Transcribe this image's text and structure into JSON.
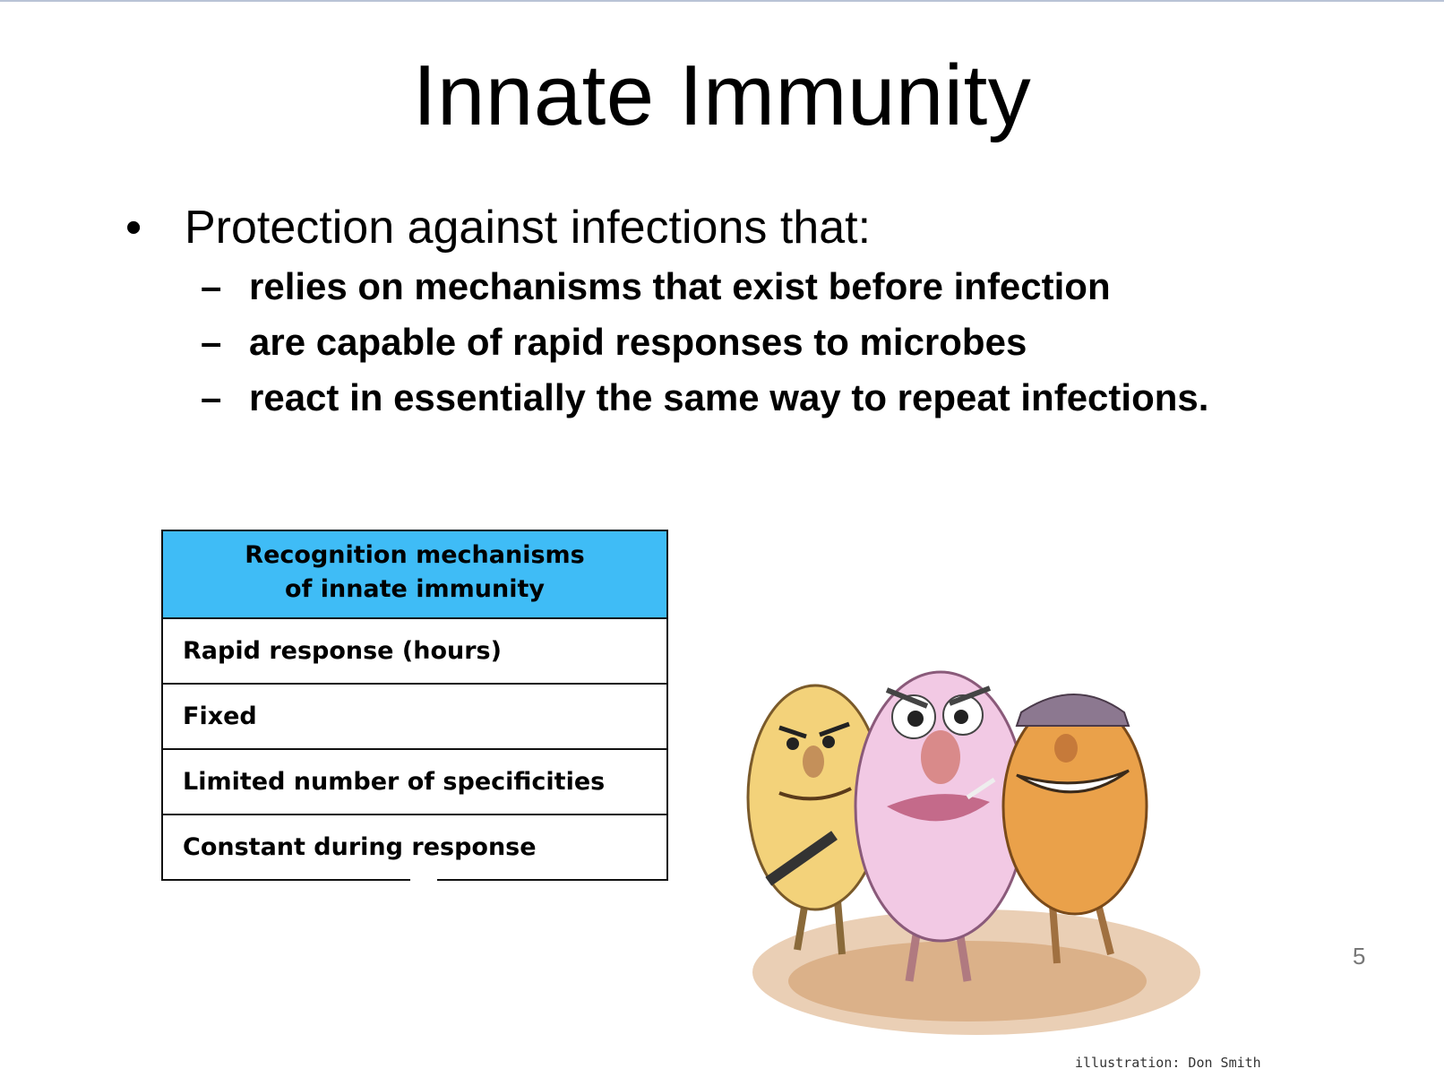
{
  "slide": {
    "title": "Innate Immunity",
    "bullet_marker": "•",
    "bullet": "Protection against infections that:",
    "sub_marker": "–",
    "sub_bullets": [
      "relies on mechanisms that exist before infection",
      "are capable of rapid responses to microbes",
      "react in essentially the same way to repeat infections."
    ],
    "page_number": "5"
  },
  "table": {
    "header_line1": "Recognition mechanisms",
    "header_line2": "of innate immunity",
    "header_color": "#3fbcf6",
    "rows": [
      "Rapid response (hours)",
      "Fixed",
      "Limited number of specificities",
      "Constant during response"
    ]
  },
  "illustration": {
    "subject": "cartoon microbes",
    "credit": "illustration: Don Smith"
  }
}
